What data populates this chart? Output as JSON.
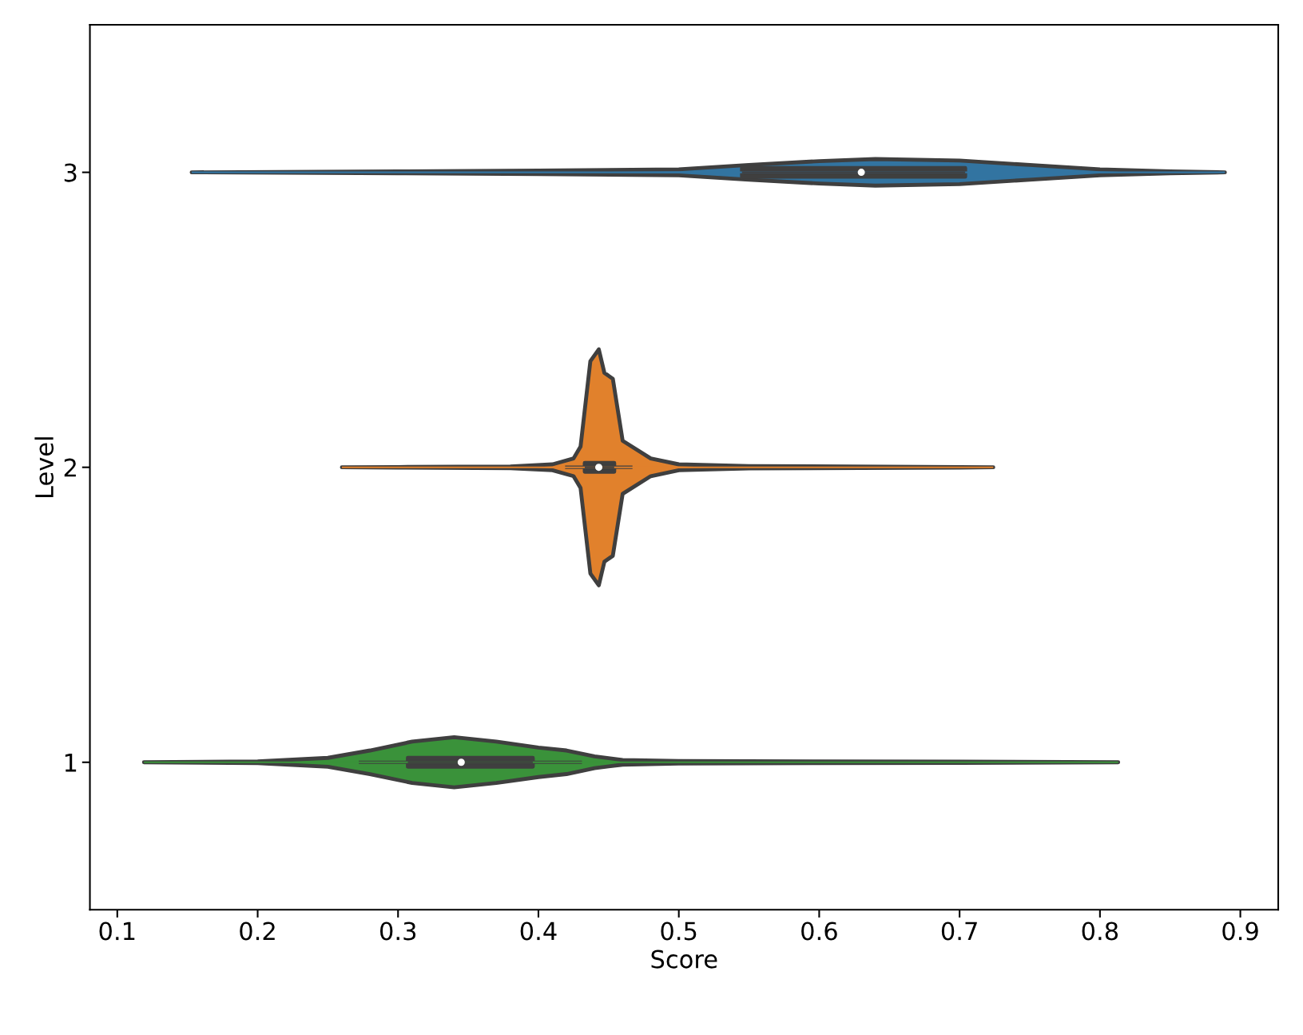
{
  "chart_data": {
    "type": "line",
    "xlabel": "Score",
    "ylabel": "Level",
    "xlim": [
      0.0805,
      0.927
    ],
    "xticks": [
      0.1,
      0.2,
      0.3,
      0.4,
      0.5,
      0.6,
      0.7,
      0.8,
      0.9
    ],
    "ylim": [
      0.5,
      3.5
    ],
    "yticks": [
      1,
      2,
      3
    ],
    "grid": false,
    "series": [
      {
        "color": "#3274a1",
        "x": [
          0.153,
          0.3,
          0.4,
          0.5,
          0.55,
          0.6,
          0.64,
          0.7,
          0.75,
          0.8,
          0.85,
          0.889
        ],
        "lower": [
          3,
          2.997,
          2.994,
          2.99,
          2.975,
          2.962,
          2.955,
          2.96,
          2.975,
          2.99,
          2.997,
          3
        ],
        "upper": [
          3,
          3.003,
          3.006,
          3.01,
          3.025,
          3.038,
          3.045,
          3.04,
          3.025,
          3.01,
          3.003,
          3
        ],
        "values": [
          3,
          3,
          3,
          3,
          3,
          3,
          3,
          3,
          3,
          3,
          3,
          3
        ]
      },
      {
        "color": "#e1812c",
        "x": [
          0.26,
          0.3,
          0.38,
          0.41,
          0.425,
          0.43,
          0.437,
          0.443,
          0.447,
          0.453,
          0.46,
          0.48,
          0.5,
          0.55,
          0.7,
          0.724
        ],
        "lower": [
          2,
          1.999,
          1.997,
          1.99,
          1.97,
          1.93,
          1.64,
          1.6,
          1.68,
          1.7,
          1.91,
          1.97,
          1.99,
          1.996,
          1.999,
          2
        ],
        "upper": [
          2,
          2.001,
          2.003,
          2.01,
          2.03,
          2.07,
          2.36,
          2.4,
          2.32,
          2.3,
          2.09,
          2.03,
          2.01,
          2.004,
          2.001,
          2
        ],
        "values": [
          2,
          2,
          2,
          2,
          2,
          2,
          2,
          2,
          2,
          2,
          2,
          2,
          2,
          2,
          2,
          2
        ]
      },
      {
        "color": "#3a923a",
        "x": [
          0.119,
          0.2,
          0.25,
          0.28,
          0.31,
          0.34,
          0.37,
          0.4,
          0.42,
          0.44,
          0.46,
          0.5,
          0.6,
          0.7,
          0.813
        ],
        "lower": [
          1,
          0.997,
          0.985,
          0.96,
          0.93,
          0.915,
          0.93,
          0.95,
          0.96,
          0.98,
          0.992,
          0.996,
          0.997,
          0.998,
          1
        ],
        "upper": [
          1,
          1.003,
          1.015,
          1.04,
          1.07,
          1.085,
          1.07,
          1.05,
          1.04,
          1.02,
          1.008,
          1.004,
          1.003,
          1.002,
          1
        ],
        "values": [
          1,
          1,
          1,
          1,
          1,
          1,
          1,
          1,
          1,
          1,
          1,
          1,
          1,
          1,
          1
        ]
      },
      {
        "color": "#3f3f3f",
        "x": [
          0.419,
          0.467
        ],
        "values": [
          2,
          2
        ]
      },
      {
        "color": "#3f3f3f",
        "x": [
          0.272,
          0.431
        ],
        "values": [
          1,
          1
        ]
      },
      {
        "color": "#3f3f3f",
        "x": [
          0.545,
          0.704
        ],
        "lower": [
          2.985,
          2.985
        ],
        "upper": [
          3.015,
          3.015
        ],
        "values": [
          3,
          3
        ]
      },
      {
        "color": "#3f3f3f",
        "x": [
          0.433,
          0.454
        ],
        "lower": [
          1.985,
          1.985
        ],
        "upper": [
          2.015,
          2.015
        ],
        "values": [
          2,
          2
        ]
      },
      {
        "color": "#3f3f3f",
        "x": [
          0.307,
          0.396
        ],
        "lower": [
          0.985,
          0.985
        ],
        "upper": [
          1.015,
          1.015
        ],
        "values": [
          1,
          1
        ]
      },
      {
        "type": "scatter",
        "color": "#ffffff",
        "marker": "circle",
        "x": [
          0.63,
          0.443,
          0.345
        ],
        "values": [
          3,
          2,
          1
        ]
      }
    ]
  }
}
